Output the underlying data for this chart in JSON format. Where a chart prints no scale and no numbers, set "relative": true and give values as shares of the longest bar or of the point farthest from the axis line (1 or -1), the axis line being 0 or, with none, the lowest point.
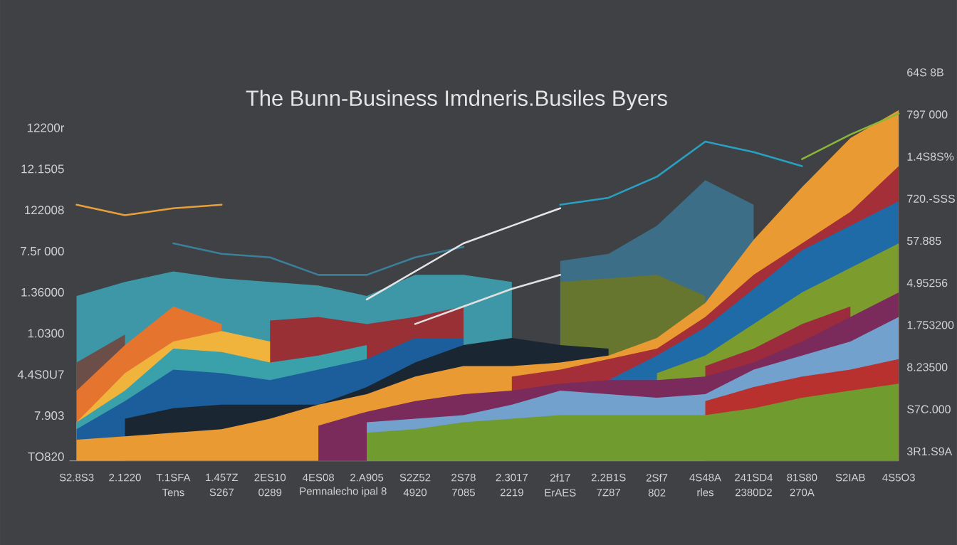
{
  "chart_data": {
    "type": "area",
    "relative": true,
    "title": "The Bunn-Business Imdneris.Busiles Byers",
    "categories": [
      "S2.8S3",
      "2.1220",
      "T.1SFA\nTens",
      "1.457Z\nS267",
      "2ES10\n0289",
      "4ES08",
      "2.A905",
      "S2Z52\n4920",
      "2S78\n7085",
      "2.3017\n2219",
      "2f17\nErAES",
      "2.2B1S\n7Z87",
      "2Sf7\n802",
      "4S48A\nrles",
      "241SD4\n2380D2",
      "81S80\n270A",
      "S2IAB",
      "4S5O3"
    ],
    "annotations": [
      "12200r",
      "12.1505",
      "122008",
      "7.5r 000",
      "1.36000",
      "1.0300",
      "4.4S0U7",
      "7.903",
      "TO820",
      "64S 8B",
      "797 000",
      "1.4S8S%",
      "720.-SSS",
      "57.885",
      "4.95256",
      "1.753200",
      "8.23500",
      "S7C.000",
      "3R1.S9A",
      "Pemnalecho ipal 8"
    ],
    "series": [
      {
        "color": "#3c6f87",
        "values": [
          null,
          null,
          null,
          null,
          null,
          null,
          null,
          null,
          null,
          null,
          0.57,
          0.59,
          0.67,
          0.8,
          0.73,
          null,
          null,
          null
        ]
      },
      {
        "color": "#3e97a6",
        "values": [
          0.47,
          0.51,
          0.54,
          0.52,
          0.51,
          0.5,
          0.47,
          0.53,
          0.53,
          0.51,
          null,
          null,
          null,
          null,
          null,
          null,
          null,
          null
        ]
      },
      {
        "color": "#66762f",
        "values": [
          null,
          null,
          null,
          null,
          null,
          null,
          null,
          null,
          null,
          null,
          0.51,
          0.52,
          0.53,
          0.47,
          null,
          null,
          null,
          null
        ]
      },
      {
        "color": "#6a4e47",
        "values": [
          0.28,
          0.36,
          null,
          null,
          null,
          null,
          null,
          null,
          null,
          null,
          null,
          null,
          null,
          null,
          null,
          null,
          null,
          null
        ]
      },
      {
        "color": "#e5742f",
        "values": [
          0.2,
          0.33,
          0.44,
          0.39,
          null,
          null,
          null,
          null,
          null,
          null,
          null,
          null,
          null,
          null,
          null,
          null,
          null,
          null
        ]
      },
      {
        "color": "#983035",
        "values": [
          null,
          null,
          null,
          null,
          0.4,
          0.41,
          0.39,
          0.41,
          0.44,
          null,
          null,
          null,
          null,
          null,
          null,
          null,
          null,
          null
        ]
      },
      {
        "color": "#f0b43c",
        "values": [
          0.11,
          0.25,
          0.34,
          0.37,
          0.34,
          null,
          null,
          null,
          null,
          null,
          null,
          null,
          null,
          null,
          null,
          null,
          null,
          null
        ]
      },
      {
        "color": "#3aa0aa",
        "values": [
          0.11,
          0.2,
          0.32,
          0.31,
          0.28,
          0.3,
          0.33,
          null,
          null,
          null,
          null,
          null,
          null,
          null,
          null,
          null,
          null,
          null
        ]
      },
      {
        "color": "#1b5e9b",
        "values": [
          0.09,
          0.17,
          0.26,
          0.25,
          0.23,
          0.26,
          0.29,
          0.35,
          0.35,
          null,
          null,
          null,
          null,
          null,
          null,
          null,
          null,
          null
        ]
      },
      {
        "color": "#1a2733",
        "values": [
          null,
          0.12,
          0.15,
          0.16,
          0.16,
          0.16,
          0.21,
          0.28,
          0.33,
          0.35,
          0.33,
          0.32,
          null,
          null,
          null,
          null,
          null,
          null
        ]
      },
      {
        "color": "#e99a33",
        "values": [
          0.06,
          0.07,
          0.08,
          0.09,
          0.12,
          0.16,
          0.19,
          0.24,
          0.27,
          0.27,
          0.28,
          0.3,
          0.35,
          0.45,
          0.63,
          0.78,
          0.92,
          1.0
        ]
      },
      {
        "color": "#a52f38",
        "values": [
          null,
          null,
          null,
          null,
          null,
          null,
          null,
          null,
          null,
          0.24,
          0.26,
          0.29,
          0.32,
          0.41,
          0.53,
          0.62,
          0.71,
          0.84
        ]
      },
      {
        "color": "#1f6ba7",
        "values": [
          null,
          null,
          null,
          null,
          null,
          null,
          null,
          null,
          null,
          null,
          null,
          0.23,
          0.3,
          0.38,
          0.49,
          0.6,
          0.67,
          0.74
        ]
      },
      {
        "color": "#7c9d2d",
        "values": [
          null,
          null,
          null,
          null,
          null,
          null,
          null,
          null,
          null,
          null,
          null,
          null,
          0.25,
          0.3,
          0.39,
          0.48,
          0.55,
          0.62
        ]
      },
      {
        "color": "#9c2b3d",
        "values": [
          null,
          null,
          null,
          null,
          null,
          null,
          null,
          null,
          null,
          null,
          null,
          null,
          null,
          0.27,
          0.32,
          0.39,
          0.44,
          null
        ]
      },
      {
        "color": "#7a2a5b",
        "values": [
          null,
          null,
          null,
          null,
          null,
          0.1,
          0.14,
          0.17,
          0.19,
          0.2,
          0.22,
          0.23,
          0.23,
          0.24,
          0.28,
          0.34,
          0.41,
          0.48
        ]
      },
      {
        "color": "#72a1cd",
        "values": [
          null,
          null,
          null,
          null,
          null,
          null,
          0.11,
          0.12,
          0.13,
          0.16,
          0.2,
          0.19,
          0.18,
          0.19,
          0.26,
          0.3,
          0.34,
          0.41
        ]
      },
      {
        "color": "#b8312f",
        "values": [
          null,
          null,
          null,
          null,
          null,
          null,
          null,
          null,
          null,
          null,
          null,
          null,
          null,
          0.17,
          0.21,
          0.24,
          0.26,
          0.29
        ]
      },
      {
        "color": "#6f9b2f",
        "values": [
          null,
          null,
          null,
          null,
          null,
          null,
          0.08,
          0.09,
          0.11,
          0.12,
          0.13,
          0.13,
          0.13,
          0.13,
          0.15,
          0.18,
          0.2,
          0.22
        ]
      },
      {
        "type": "line",
        "color": "#e8a03a",
        "values": [
          0.73,
          0.7,
          0.72,
          0.73,
          null,
          null,
          null,
          null,
          null,
          null,
          null,
          null,
          null,
          null,
          null,
          null,
          null,
          null
        ]
      },
      {
        "type": "line",
        "color": "#3b7f99",
        "values": [
          null,
          null,
          0.62,
          0.59,
          0.58,
          0.53,
          0.53,
          0.58,
          0.61,
          null,
          null,
          null,
          null,
          null,
          null,
          null,
          null,
          null
        ]
      },
      {
        "type": "line",
        "color": "#e6e6e6",
        "values": [
          null,
          null,
          null,
          null,
          null,
          null,
          0.46,
          0.54,
          0.62,
          0.67,
          0.72,
          null,
          null,
          null,
          null,
          null,
          null,
          null
        ]
      },
      {
        "type": "line",
        "color": "#e0e0e0",
        "values": [
          null,
          null,
          null,
          null,
          null,
          null,
          null,
          0.39,
          0.44,
          0.49,
          0.53,
          null,
          null,
          null,
          null,
          null,
          null,
          null
        ]
      },
      {
        "type": "line",
        "color": "#2aa0c0",
        "values": [
          null,
          null,
          null,
          null,
          null,
          null,
          null,
          null,
          null,
          null,
          0.73,
          0.75,
          0.81,
          0.91,
          0.88,
          0.84,
          null,
          null
        ]
      },
      {
        "type": "line",
        "color": "#8ab63a",
        "values": [
          null,
          null,
          null,
          null,
          null,
          null,
          null,
          null,
          null,
          null,
          null,
          null,
          null,
          null,
          null,
          0.86,
          0.93,
          0.99
        ]
      }
    ]
  }
}
